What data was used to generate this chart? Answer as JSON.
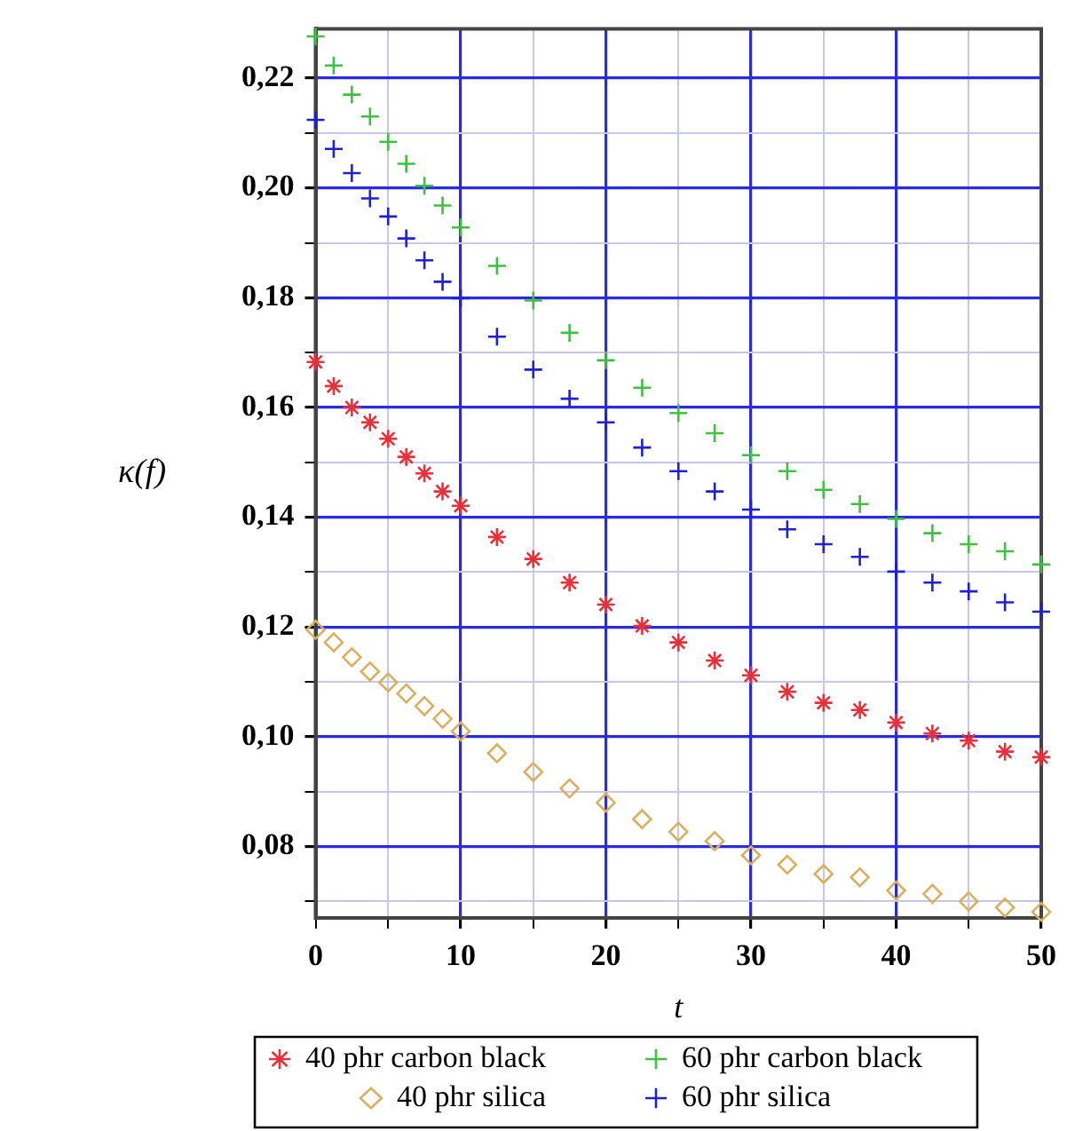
{
  "chart_data": {
    "type": "scatter",
    "xlabel": "t",
    "ylabel": "κ(f)",
    "x": [
      0,
      1.25,
      2.5,
      3.75,
      5,
      6.25,
      7.5,
      8.75,
      10,
      12.5,
      15,
      17.5,
      20,
      22.5,
      25,
      27.5,
      30,
      32.5,
      35,
      37.5,
      40,
      42.5,
      45,
      47.5,
      50
    ],
    "series": [
      {
        "name": "40 phr carbon black",
        "color": "#e8303a",
        "values": [
          0.1683,
          0.1639,
          0.16,
          0.1573,
          0.1543,
          0.151,
          0.148,
          0.1447,
          0.1421,
          0.1364,
          0.1324,
          0.1281,
          0.1241,
          0.1202,
          0.1172,
          0.1139,
          0.1112,
          0.1082,
          0.1062,
          0.1049,
          0.1026,
          0.1006,
          0.0993,
          0.0973,
          0.0963
        ]
      },
      {
        "name": "60 phr carbon black",
        "color": "#40c040",
        "marker": "cross",
        "values": [
          0.2276,
          0.2223,
          0.217,
          0.213,
          0.2084,
          0.2044,
          0.2004,
          0.1968,
          0.1928,
          0.1858,
          0.1795,
          0.1736,
          0.1686,
          0.1636,
          0.159,
          0.1553,
          0.1513,
          0.1484,
          0.145,
          0.1424,
          0.1397,
          0.1371,
          0.1351,
          0.1338,
          0.1314
        ]
      },
      {
        "name": "40 phr silica",
        "color": "#d8b060",
        "marker": "diamond",
        "values": [
          0.1195,
          0.1172,
          0.1145,
          0.1119,
          0.1099,
          0.1079,
          0.1056,
          0.1033,
          0.101,
          0.097,
          0.0936,
          0.0906,
          0.088,
          0.085,
          0.0827,
          0.081,
          0.0784,
          0.0767,
          0.075,
          0.0744,
          0.072,
          0.0714,
          0.07,
          0.0689,
          0.0681
        ]
      },
      {
        "name": "60 phr silica",
        "color": "#2020d0",
        "marker": "cross",
        "values": [
          0.2124,
          0.2071,
          0.2027,
          0.1981,
          0.1948,
          0.1908,
          0.1868,
          0.1829,
          0.1799,
          0.1729,
          0.1669,
          0.1616,
          0.1573,
          0.1527,
          0.1484,
          0.1447,
          0.1414,
          0.1378,
          0.1351,
          0.1328,
          0.1301,
          0.1281,
          0.1265,
          0.1245,
          0.1228
        ]
      }
    ],
    "xlim": [
      0,
      50
    ],
    "xticks": [
      0,
      {
        "value": 5,
        "label": null
      },
      10,
      {
        "value": 15,
        "label": null
      },
      20,
      {
        "value": 25,
        "label": null
      },
      30,
      {
        "value": 35,
        "label": null
      },
      40,
      {
        "value": 45,
        "label": null
      },
      50
    ],
    "ylim": [
      0.067,
      0.229
    ],
    "yticks": [
      {
        "value": 0.07,
        "label": null
      },
      {
        "value": 0.08,
        "label": "0,08"
      },
      {
        "value": 0.09,
        "label": null
      },
      {
        "value": 0.1,
        "label": "0,10"
      },
      {
        "value": 0.11,
        "label": null
      },
      {
        "value": 0.12,
        "label": "0,12"
      },
      {
        "value": 0.13,
        "label": null
      },
      {
        "value": 0.14,
        "label": "0,14"
      },
      {
        "value": 0.15,
        "label": null
      },
      {
        "value": 0.16,
        "label": "0,16"
      },
      {
        "value": 0.17,
        "label": null
      },
      {
        "value": 0.18,
        "label": "0,18"
      },
      {
        "value": 0.19,
        "label": null
      },
      {
        "value": 0.2,
        "label": "0,20"
      },
      {
        "value": 0.21,
        "label": null
      },
      {
        "value": 0.22,
        "label": "0,22"
      }
    ],
    "grid": true,
    "legend": "bottom"
  }
}
